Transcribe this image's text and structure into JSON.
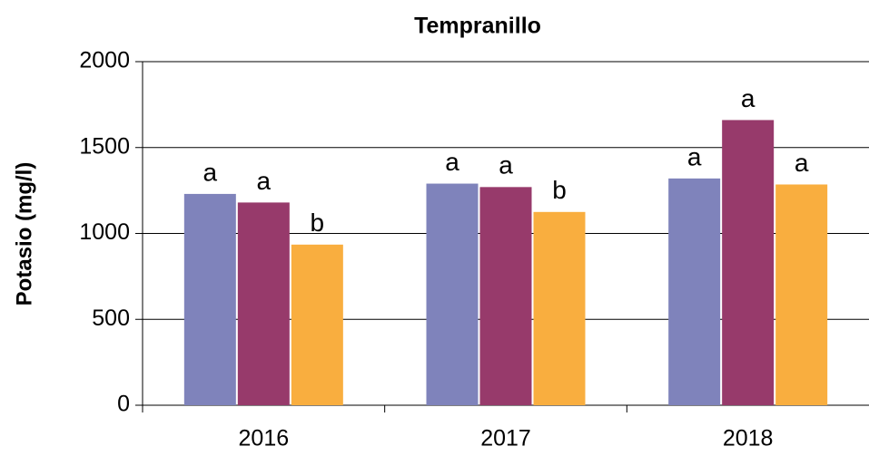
{
  "chart_data": {
    "type": "bar",
    "title": "Tempranillo",
    "y_label": "Potasio (mg/l)",
    "categories": [
      "2016",
      "2017",
      "2018"
    ],
    "series": [
      {
        "color": "#7f83bb",
        "values": [
          1230,
          1290,
          1320
        ],
        "letters": [
          "a",
          "a",
          "a"
        ]
      },
      {
        "color": "#973a6b",
        "values": [
          1180,
          1270,
          1660
        ],
        "letters": [
          "a",
          "a",
          "a"
        ]
      },
      {
        "color": "#f9ae3f",
        "values": [
          935,
          1125,
          1285
        ],
        "letters": [
          "b",
          "b",
          "a"
        ]
      }
    ],
    "ylim": [
      0,
      2000
    ],
    "yticks": [
      0,
      500,
      1000,
      1500,
      2000
    ],
    "grid": true
  }
}
